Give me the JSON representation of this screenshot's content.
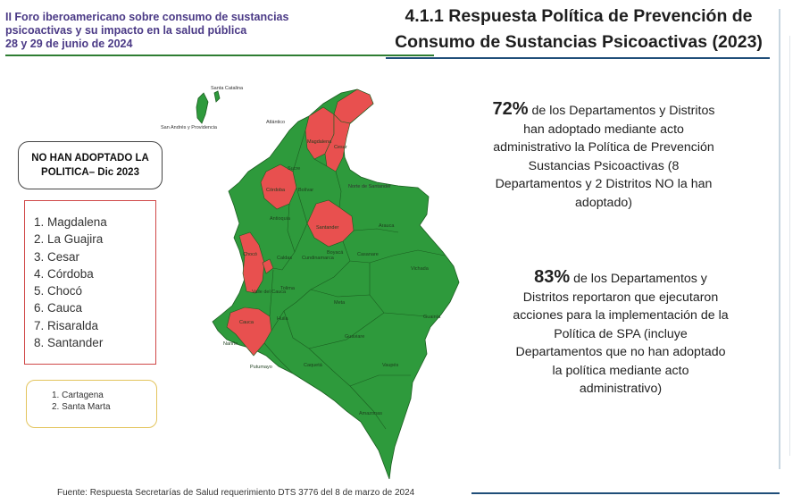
{
  "header": {
    "event_line1": "II Foro iberoamericano sobre consumo de sustancias",
    "event_line2": "psicoactivas y su impacto en la salud pública",
    "event_line3": "28 y 29 de junio de 2024",
    "title_line1": "4.1.1 Respuesta Política de Prevención de",
    "title_line2": "Consumo de Sustancias Psicoactivas (2023)"
  },
  "not_adopted_box": {
    "heading": "NO HAN ADOPTADO LA POLITICA– Dic 2023",
    "departments": [
      "1. Magdalena",
      "2. La Guajira",
      "3. Cesar",
      "4. Córdoba",
      "5. Chocó",
      "6. Cauca",
      "7. Risaralda",
      "8. Santander"
    ],
    "districts": [
      "1. Cartagena",
      "2. Santa Marta"
    ]
  },
  "stats": [
    {
      "pct": "72%",
      "text": " de los Departamentos y Distritos han adoptado mediante acto administrativo la Política de Prevención Sustancias Psicoactivas (8 Departamentos y 2 Distritos NO la han adoptado)"
    },
    {
      "pct": "83%",
      "text": " de los Departamentos y Distritos reportaron que ejecutaron acciones para la implementación de la Política de SPA (incluye Departamentos que no han adoptado la política mediante acto administrativo)"
    }
  ],
  "map": {
    "colors": {
      "adopted": "#2e9a3c",
      "not_adopted": "#e8504f",
      "border": "#1b5e20"
    },
    "labels": {
      "santa_catalina": "Santa Catalina",
      "san_andres": "San Andrés y Providencia",
      "atlantico": "Atlántico",
      "magdalena": "Magdalena",
      "cesar": "Cesar",
      "sucre": "Sucre",
      "bolivar": "Bolívar",
      "cordoba": "Córdoba",
      "norte_santander": "Norte de Santander",
      "antioquia": "Antioquia",
      "santander": "Santander",
      "arauca": "Arauca",
      "boyaca": "Boyacá",
      "casanare": "Casanare",
      "choco": "Chocó",
      "caldas": "Caldas",
      "cundinamarca": "Cundinamarca",
      "vichada": "Vichada",
      "valle": "Valle del Cauca",
      "tolima": "Tolima",
      "meta": "Meta",
      "guainia": "Guainía",
      "cauca": "Cauca",
      "huila": "Huila",
      "guaviare": "Guaviare",
      "narino": "Nariño",
      "putumayo": "Putumayo",
      "caqueta": "Caquetá",
      "vaupes": "Vaupés",
      "amazonas": "Amazonas"
    }
  },
  "footer": {
    "source": "Fuente: Respuesta Secretarías de Salud requerimiento DTS 3776 del 8 de marzo de 2024"
  }
}
